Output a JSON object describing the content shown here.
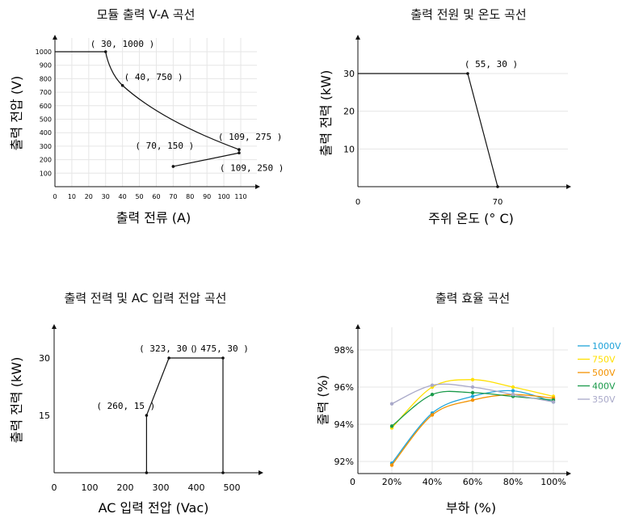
{
  "chart_data": [
    {
      "type": "line",
      "title": "모듈 출력 V-A 곡선",
      "xlabel": "출력 전류 (A)",
      "ylabel": "출력 전압 (V)",
      "xlim": [
        0,
        120
      ],
      "ylim": [
        0,
        1060
      ],
      "xticks": [
        0,
        10,
        20,
        30,
        40,
        50,
        60,
        70,
        80,
        90,
        100,
        110
      ],
      "yticks": [
        100,
        200,
        300,
        400,
        500,
        600,
        700,
        800,
        900,
        1000
      ],
      "grid": true,
      "series": [
        {
          "points": [
            [
              0,
              1000
            ],
            [
              30,
              1000
            ],
            [
              32,
              950
            ],
            [
              36,
              850
            ],
            [
              40,
              750
            ],
            [
              50,
              610
            ],
            [
              60,
              520
            ],
            [
              70,
              445
            ],
            [
              80,
              390
            ],
            [
              90,
              340
            ],
            [
              100,
              300
            ],
            [
              109,
              275
            ],
            [
              109,
              250
            ],
            [
              70,
              150
            ]
          ]
        }
      ],
      "annotations": [
        {
          "text": "( 30, 1000 )",
          "x": 30,
          "y": 1000
        },
        {
          "text": "( 40, 750 )",
          "x": 40,
          "y": 750
        },
        {
          "text": "( 109, 275 )",
          "x": 109,
          "y": 275
        },
        {
          "text": "( 70, 150 )",
          "x": 70,
          "y": 150
        },
        {
          "text": "( 109, 250 )",
          "x": 109,
          "y": 250
        }
      ]
    },
    {
      "type": "line",
      "title": "출력 전원 및 온도 곡선",
      "xlabel": "주위 온도 (° C)",
      "ylabel": "출력 전력 (kW)",
      "xlim": [
        0,
        95
      ],
      "ylim": [
        0,
        37
      ],
      "xticks": [
        0,
        70
      ],
      "yticks": [
        10,
        20,
        30
      ],
      "grid": true,
      "series": [
        {
          "points": [
            [
              0,
              30
            ],
            [
              55,
              30
            ],
            [
              70,
              0
            ]
          ]
        }
      ],
      "annotations": [
        {
          "text": "( 55, 30 )",
          "x": 55,
          "y": 30
        }
      ]
    },
    {
      "type": "line",
      "title": "출력 전력 및 AC 입력 전압 곡선",
      "xlabel": "AC 입력 전압 (Vac)",
      "ylabel": "출력 전력 (kW)",
      "xlim": [
        0,
        590
      ],
      "ylim": [
        0,
        37
      ],
      "xticks": [
        0,
        100,
        200,
        300,
        400,
        500
      ],
      "yticks": [
        15,
        30
      ],
      "grid": false,
      "series": [
        {
          "points": [
            [
              260,
              0
            ],
            [
              260,
              15
            ],
            [
              323,
              30
            ],
            [
              475,
              30
            ],
            [
              475,
              0
            ]
          ]
        }
      ],
      "annotations": [
        {
          "text": "( 260, 15 )",
          "x": 260,
          "y": 15
        },
        {
          "text": "( 323, 30 )",
          "x": 323,
          "y": 30
        },
        {
          "text": "( 475, 30 )",
          "x": 475,
          "y": 30
        }
      ]
    },
    {
      "type": "line",
      "title": "출력 효율 곡선",
      "xlabel": "부하 (%)",
      "ylabel": "출력 (%)",
      "categories": [
        "20%",
        "40%",
        "60%",
        "80%",
        "100%"
      ],
      "xlim": [
        10,
        107
      ],
      "ylim": [
        90.5,
        99
      ],
      "yticks": [
        92,
        94,
        96,
        98
      ],
      "ytick_labels": [
        "92%",
        "94%",
        "96%",
        "98%"
      ],
      "grid": true,
      "legend": "right",
      "series": [
        {
          "name": "1000V",
          "color": "#1fa3d9",
          "x": [
            20,
            40,
            60,
            80,
            100
          ],
          "values": [
            91.9,
            94.6,
            95.5,
            95.8,
            95.2
          ]
        },
        {
          "name": "750V",
          "color": "#ffe000",
          "x": [
            20,
            40,
            60,
            80,
            100
          ],
          "values": [
            93.8,
            96.0,
            96.4,
            96.0,
            95.5
          ]
        },
        {
          "name": "500V",
          "color": "#f39200",
          "x": [
            20,
            40,
            60,
            80,
            100
          ],
          "values": [
            91.8,
            94.5,
            95.3,
            95.6,
            95.4
          ]
        },
        {
          "name": "400V",
          "color": "#1a9a4a",
          "x": [
            20,
            40,
            60,
            80,
            100
          ],
          "values": [
            93.9,
            95.6,
            95.7,
            95.5,
            95.3
          ]
        },
        {
          "name": "350V",
          "color": "#a9a9c9",
          "x": [
            20,
            40,
            60,
            80,
            100
          ],
          "values": [
            95.1,
            96.1,
            96.0,
            95.6,
            95.2
          ]
        }
      ]
    }
  ]
}
